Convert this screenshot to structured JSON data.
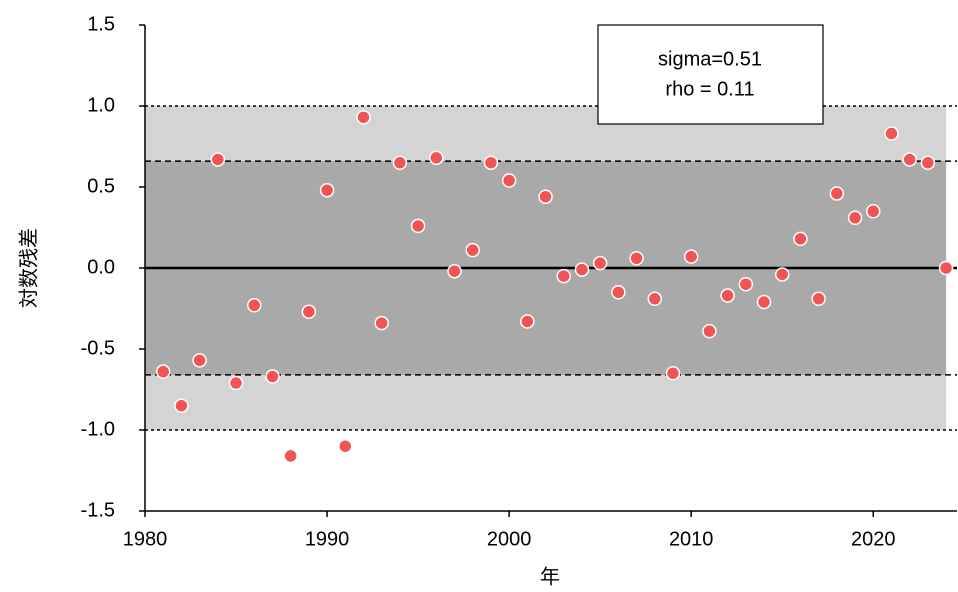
{
  "chart_data": {
    "type": "scatter",
    "x_label": "年",
    "y_label": "対数残差",
    "annotations": [
      "sigma=0.51",
      "rho = 0.11"
    ],
    "x": [
      1981,
      1982,
      1983,
      1984,
      1985,
      1986,
      1987,
      1988,
      1989,
      1990,
      1991,
      1992,
      1993,
      1994,
      1995,
      1996,
      1997,
      1998,
      1999,
      2000,
      2001,
      2002,
      2003,
      2004,
      2005,
      2006,
      2007,
      2008,
      2009,
      2010,
      2011,
      2012,
      2013,
      2014,
      2015,
      2016,
      2017,
      2018,
      2019,
      2020,
      2021,
      2022,
      2023,
      2024
    ],
    "values": [
      -0.64,
      -0.85,
      -0.57,
      0.67,
      -0.71,
      -0.23,
      -0.67,
      -1.16,
      -0.27,
      0.48,
      -1.1,
      0.93,
      -0.34,
      0.65,
      0.26,
      0.68,
      -0.02,
      0.11,
      0.65,
      0.54,
      -0.33,
      0.44,
      -0.05,
      -0.01,
      0.03,
      -0.15,
      0.06,
      -0.19,
      -0.65,
      0.07,
      -0.39,
      -0.17,
      -0.1,
      -0.21,
      -0.04,
      0.18,
      -0.19,
      0.46,
      0.31,
      0.35,
      0.83,
      0.67,
      0.65,
      0.0
    ],
    "color": "#f05454",
    "bands": [
      {
        "lower": -1.0,
        "upper": 1.0,
        "color": "#d4d4d4"
      },
      {
        "lower": -0.66,
        "upper": 0.66,
        "color": "#a9a9a9"
      }
    ],
    "reference_line": 0,
    "xlim": [
      1980,
      2024.6
    ],
    "ylim": [
      -1.5,
      1.5
    ],
    "xticks": [
      1980,
      1990,
      2000,
      2010,
      2020
    ],
    "yticks": [
      -1.5,
      {
        "value": -1.0,
        "label": "-1.0"
      },
      -0.5,
      {
        "value": 0,
        "label": "0.0"
      },
      0.5,
      {
        "value": 1.0,
        "label": "1.0"
      },
      1.5
    ]
  }
}
